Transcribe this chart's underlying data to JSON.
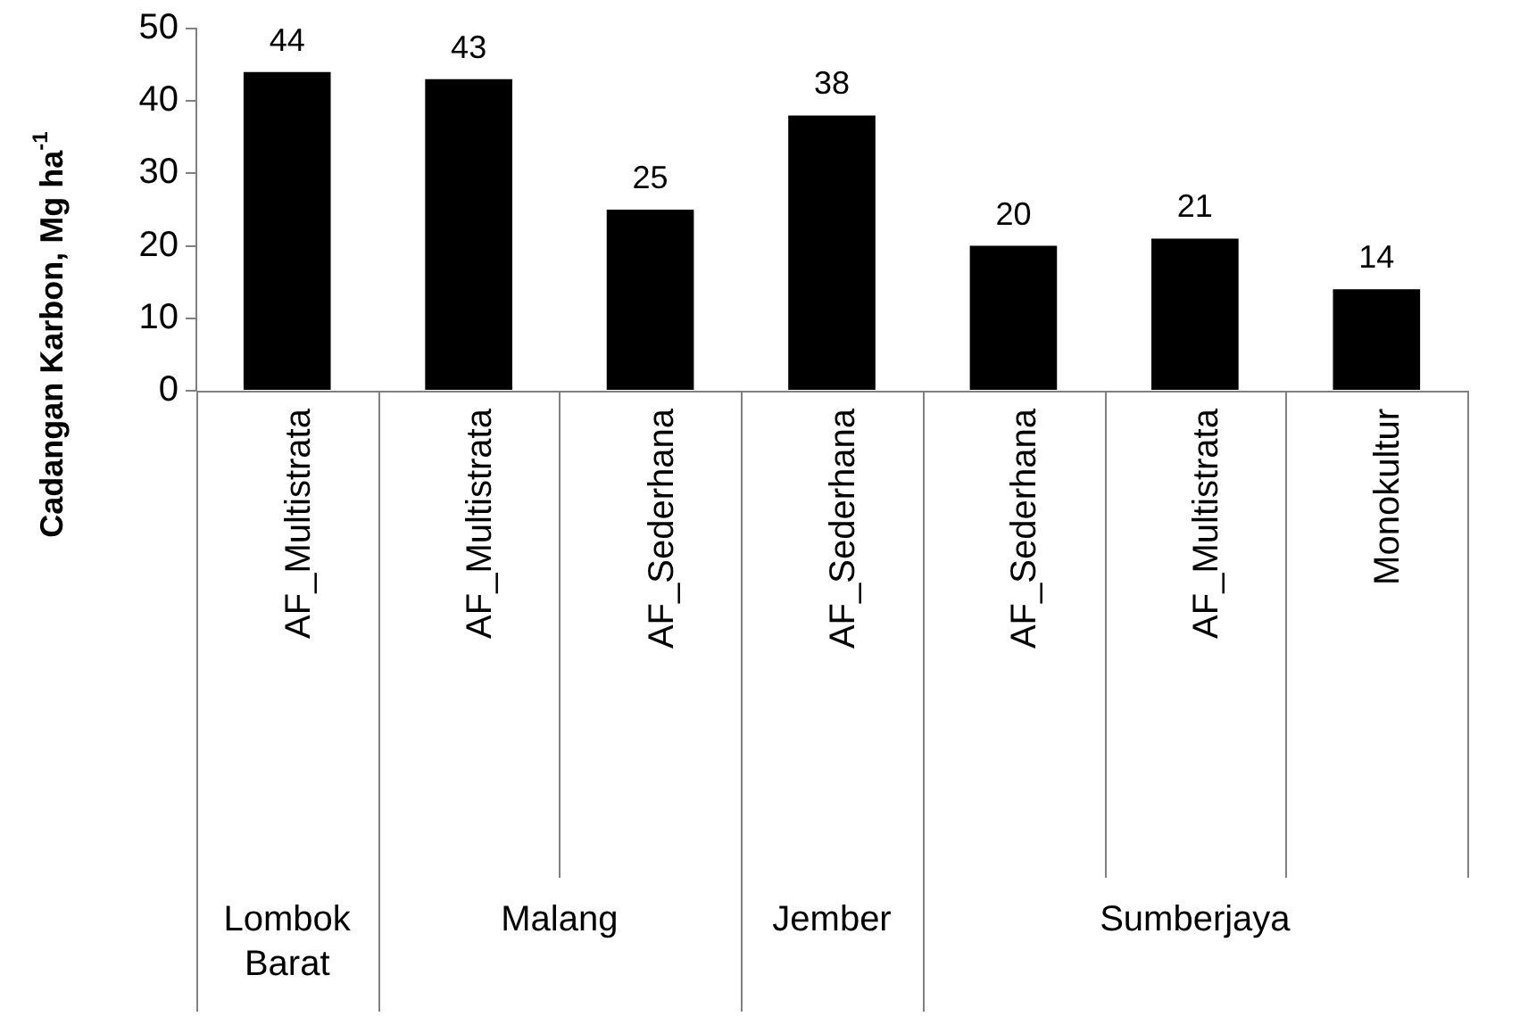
{
  "chart_data": {
    "type": "bar",
    "ylabel": "Cadangan Karbon, Mg ha$^{-1}$",
    "categories": [
      "AF_Multistrata",
      "AF_Multistrata",
      "AF_Sederhana",
      "AF_Sederhana",
      "AF_Sederhana",
      "AF_Multistrata",
      "Monokultur"
    ],
    "annotations": [
      "Lombok Barat",
      "Malang",
      "Jember",
      "Sumberjaya"
    ],
    "values": [
      44,
      43,
      25,
      38,
      20,
      21,
      14
    ],
    "color": "#000000",
    "data_labels": true,
    "ylim": [
      0,
      50
    ],
    "yticks": [
      0,
      10,
      20,
      30,
      40,
      50
    ],
    "grid": false,
    "legend": false
  }
}
